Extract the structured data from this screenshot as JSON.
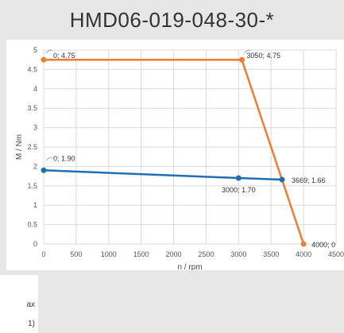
{
  "chart_data": {
    "type": "line",
    "title": "HMD06-019-048-30-*",
    "xlabel": "n / rpm",
    "ylabel": "M / Nm",
    "xlim": [
      0,
      4500
    ],
    "ylim": [
      0,
      5
    ],
    "x_ticks": [
      "0",
      "500",
      "1000",
      "1500",
      "2000",
      "2500",
      "3000",
      "3500",
      "4000",
      "4500"
    ],
    "y_ticks": [
      "0",
      "0.5",
      "1",
      "1.5",
      "2",
      "2.5",
      "3",
      "3.5",
      "4",
      "4.5",
      "5"
    ],
    "grid": true,
    "series": [
      {
        "color": "#ed7d31",
        "points": [
          {
            "x": 0,
            "y": 4.75,
            "label": "0; 4.75"
          },
          {
            "x": 3050,
            "y": 4.75,
            "label": "3050; 4.75"
          },
          {
            "x": 4000,
            "y": 0,
            "label": "4000; 0"
          }
        ]
      },
      {
        "color": "#1f6fb5",
        "points": [
          {
            "x": 0,
            "y": 1.9,
            "label": "0; 1.90"
          },
          {
            "x": 3000,
            "y": 1.7,
            "label": "3000; 1.70"
          },
          {
            "x": 3669,
            "y": 1.66,
            "label": "3669; 1.66"
          }
        ]
      }
    ]
  },
  "legend_fragment": {
    "line1": "ax",
    "line2": "1)"
  }
}
